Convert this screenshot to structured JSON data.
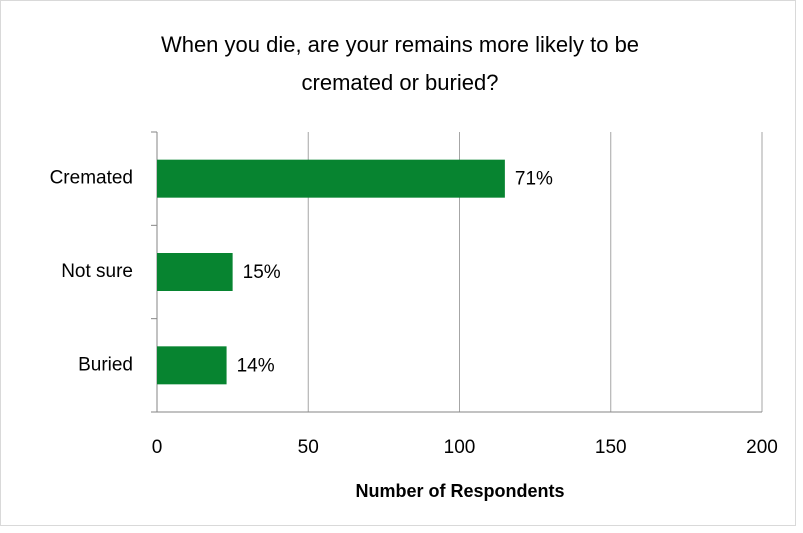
{
  "chart_data": {
    "type": "bar",
    "orientation": "horizontal",
    "title": "When you die, are your remains more likely to be cremated or buried?",
    "x_label": "Number of Respondents",
    "categories": [
      "Cremated",
      "Not sure",
      "Buried"
    ],
    "values": [
      115,
      25,
      23
    ],
    "value_labels": [
      "71%",
      "15%",
      "14%"
    ],
    "color": "#078430",
    "xlim": [
      0,
      200
    ],
    "xticks": [
      0,
      50,
      100,
      150,
      200
    ],
    "grid": true
  }
}
